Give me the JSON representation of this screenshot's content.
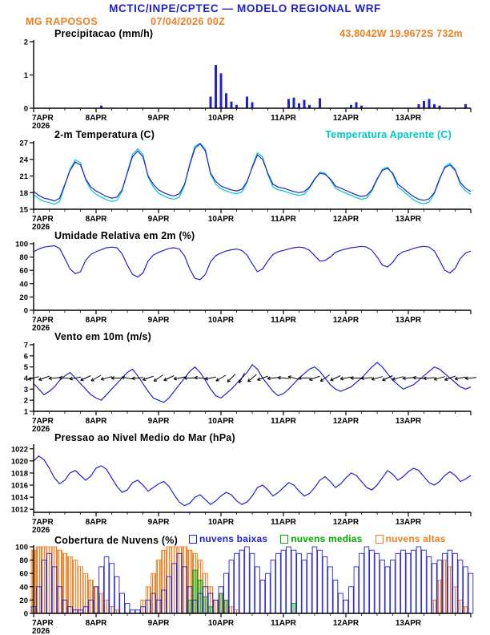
{
  "header": {
    "title": "MCTIC/INPE/CPTEC — MODELO REGIONAL WRF",
    "station": "MG RAPOSOS",
    "run": "07/04/2026 00Z",
    "location": "43.8042W 19.9672S 732m"
  },
  "colors": {
    "header_blue": "#2222cc",
    "line_blue": "#2222cc",
    "orange": "#ee7f22",
    "cyan": "#00c8c8",
    "green": "#00aa00",
    "black": "#000000"
  },
  "x_axis": {
    "labels": [
      "7APR",
      "8APR",
      "9APR",
      "10APR",
      "11APR",
      "12APR",
      "13APR"
    ],
    "year": "2026",
    "hours": 168,
    "step_hours": 2
  },
  "chart_data": [
    {
      "id": "precip",
      "type": "bar",
      "title": "Precipitacao (mm/h)",
      "ylim": [
        0,
        2
      ],
      "yticks": [
        0,
        1,
        2
      ],
      "series": [
        {
          "name": "precipitacao",
          "type": "bar",
          "color": "#2222cc",
          "values": [
            0,
            0,
            0,
            0,
            0,
            0,
            0,
            0,
            0,
            0,
            0,
            0,
            0,
            0.08,
            0,
            0,
            0,
            0,
            0,
            0,
            0,
            0,
            0,
            0,
            0,
            0,
            0,
            0,
            0,
            0,
            0,
            0,
            0,
            0,
            0.35,
            1.3,
            1.05,
            0.45,
            0.2,
            0.1,
            0,
            0.35,
            0.18,
            0,
            0,
            0,
            0,
            0,
            0,
            0.28,
            0.32,
            0.15,
            0.25,
            0.1,
            0,
            0.3,
            0,
            0,
            0,
            0,
            0,
            0.1,
            0.18,
            0.08,
            0,
            0,
            0,
            0,
            0,
            0,
            0,
            0,
            0,
            0,
            0.12,
            0.22,
            0.28,
            0.12,
            0.08,
            0,
            0,
            0,
            0,
            0.12,
            0
          ]
        }
      ]
    },
    {
      "id": "temp",
      "type": "line",
      "title": "2-m Temperatura (C)",
      "legend": "Temperatura Aparente (C)",
      "ylim": [
        15,
        27
      ],
      "yticks": [
        15,
        18,
        21,
        24,
        27
      ],
      "series": [
        {
          "name": "temperatura-aparente",
          "type": "line",
          "color": "#00c8c8",
          "values": [
            17.6,
            16.9,
            16.4,
            16.2,
            15.9,
            16.4,
            19.3,
            22.2,
            23.9,
            23.4,
            20.3,
            18.5,
            17.7,
            17.2,
            16.7,
            16.4,
            16.6,
            18.3,
            21.7,
            24.9,
            25.9,
            24.9,
            20.8,
            19.0,
            17.9,
            17.4,
            17.0,
            16.8,
            17.2,
            19.3,
            23.2,
            26.4,
            26.9,
            25.9,
            21.3,
            19.5,
            18.7,
            18.3,
            18.0,
            17.8,
            18.1,
            19.8,
            22.7,
            25.2,
            24.4,
            21.3,
            19.0,
            18.5,
            18.3,
            18.0,
            17.7,
            17.5,
            17.7,
            18.8,
            20.3,
            21.7,
            21.5,
            20.3,
            18.8,
            18.3,
            17.9,
            17.5,
            17.1,
            16.8,
            17.0,
            18.3,
            20.3,
            22.2,
            22.6,
            21.3,
            19.0,
            18.3,
            17.5,
            16.7,
            16.2,
            16.0,
            16.3,
            17.8,
            20.3,
            22.7,
            23.3,
            22.2,
            19.4,
            18.3,
            17.7
          ]
        },
        {
          "name": "temperatura-2m",
          "type": "line",
          "color": "#2222cc",
          "values": [
            18.2,
            17.5,
            17.0,
            16.8,
            16.5,
            17.0,
            19.5,
            22.0,
            23.5,
            23.0,
            20.5,
            19.0,
            18.3,
            17.8,
            17.3,
            17.0,
            17.2,
            18.5,
            21.5,
            24.5,
            25.5,
            24.5,
            21.0,
            19.5,
            18.5,
            18.0,
            17.6,
            17.4,
            17.8,
            19.5,
            23.0,
            26.0,
            26.8,
            25.5,
            21.5,
            20.0,
            19.2,
            18.8,
            18.5,
            18.3,
            18.6,
            20.0,
            22.5,
            24.8,
            24.0,
            21.5,
            19.5,
            19.0,
            18.8,
            18.5,
            18.2,
            18.0,
            18.2,
            19.0,
            20.5,
            21.5,
            21.3,
            20.5,
            19.2,
            18.8,
            18.4,
            18.0,
            17.6,
            17.3,
            17.5,
            18.5,
            20.5,
            22.0,
            22.4,
            21.5,
            19.5,
            18.8,
            18.0,
            17.3,
            16.8,
            16.6,
            16.9,
            18.0,
            20.5,
            22.5,
            23.0,
            22.0,
            19.8,
            18.8,
            18.2
          ]
        }
      ]
    },
    {
      "id": "rh",
      "type": "line",
      "title": "Umidade Relativa em 2m (%)",
      "ylim": [
        0,
        100
      ],
      "yticks": [
        0,
        20,
        40,
        60,
        80,
        100
      ],
      "series": [
        {
          "name": "umidade-relativa",
          "type": "line",
          "color": "#2222cc",
          "values": [
            88,
            92,
            95,
            96,
            97,
            93,
            78,
            62,
            55,
            58,
            75,
            84,
            88,
            91,
            94,
            95,
            94,
            85,
            68,
            54,
            50,
            56,
            74,
            83,
            87,
            90,
            93,
            94,
            92,
            82,
            62,
            48,
            46,
            54,
            73,
            82,
            86,
            89,
            91,
            92,
            90,
            83,
            70,
            58,
            62,
            74,
            84,
            88,
            90,
            92,
            94,
            95,
            94,
            90,
            82,
            74,
            75,
            80,
            87,
            90,
            92,
            94,
            95,
            96,
            95,
            90,
            80,
            68,
            65,
            72,
            83,
            88,
            90,
            93,
            95,
            96,
            95,
            89,
            75,
            60,
            56,
            63,
            78,
            86,
            89
          ]
        }
      ]
    },
    {
      "id": "wind",
      "type": "line",
      "title": "Vento em 10m (m/s)",
      "ylim": [
        1,
        7
      ],
      "yticks": [
        1,
        2,
        3,
        4,
        5,
        6,
        7
      ],
      "series": [
        {
          "name": "vento-10m",
          "type": "line",
          "color": "#2222cc",
          "values": [
            3.5,
            3.0,
            2.5,
            2.8,
            3.2,
            3.8,
            4.2,
            4.5,
            4.0,
            3.5,
            3.0,
            2.5,
            2.2,
            2.0,
            2.5,
            3.0,
            3.5,
            4.0,
            4.5,
            4.8,
            4.2,
            3.5,
            2.8,
            2.2,
            2.0,
            1.8,
            2.2,
            2.8,
            3.4,
            4.0,
            4.6,
            5.0,
            4.5,
            3.8,
            3.0,
            2.4,
            2.2,
            2.6,
            3.0,
            3.5,
            4.0,
            4.5,
            5.2,
            4.8,
            4.0,
            3.4,
            2.8,
            2.4,
            2.6,
            3.0,
            3.5,
            4.0,
            4.4,
            4.8,
            5.0,
            4.6,
            4.0,
            3.4,
            3.0,
            2.8,
            3.0,
            3.2,
            3.6,
            4.0,
            4.5,
            5.0,
            5.4,
            5.0,
            4.4,
            3.8,
            3.4,
            3.0,
            3.2,
            3.4,
            3.8,
            4.2,
            4.6,
            5.0,
            4.8,
            4.4,
            4.0,
            3.6,
            3.2,
            3.0,
            3.2
          ]
        },
        {
          "name": "wind-barbs",
          "type": "barbs",
          "color": "#000000",
          "level": 4,
          "step_hours": 4,
          "directions": [
            195,
            200,
            185,
            175,
            190,
            205,
            210,
            195,
            180,
            170,
            185,
            200,
            215,
            205,
            190,
            180,
            175,
            190,
            210,
            225,
            240,
            220,
            200,
            185,
            175,
            165,
            180,
            200,
            215,
            205,
            190,
            180,
            185,
            195,
            205,
            195,
            185,
            175,
            185,
            195,
            200,
            190,
            185
          ]
        }
      ]
    },
    {
      "id": "pressure",
      "type": "line",
      "title": "Pressao ao Nivel Medio do Mar (hPa)",
      "ylim": [
        1011.5,
        1022.5
      ],
      "yticks": [
        1012,
        1014,
        1016,
        1018,
        1020,
        1022
      ],
      "series": [
        {
          "name": "pressao-nivel-mar",
          "type": "line",
          "color": "#2222cc",
          "values": [
            1020.0,
            1020.8,
            1020.2,
            1018.8,
            1017.2,
            1016.2,
            1016.8,
            1018.0,
            1018.4,
            1017.6,
            1016.8,
            1017.5,
            1018.8,
            1019.2,
            1018.6,
            1017.2,
            1015.8,
            1014.8,
            1015.2,
            1016.4,
            1016.8,
            1016.0,
            1015.0,
            1015.6,
            1016.2,
            1016.6,
            1015.8,
            1014.4,
            1013.2,
            1012.6,
            1013.0,
            1014.0,
            1014.4,
            1013.6,
            1012.8,
            1013.4,
            1014.2,
            1014.8,
            1014.4,
            1013.4,
            1012.8,
            1013.2,
            1014.2,
            1015.6,
            1016.0,
            1015.2,
            1014.2,
            1014.8,
            1015.6,
            1016.4,
            1016.0,
            1015.0,
            1014.2,
            1014.6,
            1015.6,
            1016.8,
            1017.4,
            1016.6,
            1015.6,
            1016.2,
            1017.2,
            1018.0,
            1017.6,
            1016.6,
            1015.6,
            1015.2,
            1016.0,
            1017.2,
            1018.4,
            1017.8,
            1016.8,
            1017.4,
            1018.2,
            1018.8,
            1018.4,
            1017.4,
            1016.4,
            1016.0,
            1016.6,
            1017.6,
            1018.2,
            1017.6,
            1016.6,
            1017.0,
            1017.6
          ]
        }
      ]
    },
    {
      "id": "clouds",
      "type": "bar",
      "title": "Cobertura de Nuvens (%)",
      "ylim": [
        0,
        100
      ],
      "yticks": [
        0,
        20,
        40,
        60,
        80,
        100
      ],
      "legend_items": [
        {
          "label": "nuvens baixas",
          "color": "#2222cc"
        },
        {
          "label": "nuvens medias",
          "color": "#00aa00"
        },
        {
          "label": "nuvens altas",
          "color": "#ee7f22"
        }
      ],
      "series": [
        {
          "name": "nuvens-altas",
          "type": "cloudbar",
          "color": "#ee7f22",
          "hatch": true,
          "values": [
            95,
            100,
            100,
            100,
            100,
            95,
            90,
            85,
            80,
            70,
            60,
            50,
            40,
            30,
            20,
            10,
            5,
            0,
            0,
            0,
            0,
            20,
            40,
            60,
            80,
            95,
            100,
            100,
            100,
            100,
            95,
            90,
            80,
            60,
            40,
            20,
            30,
            20,
            10,
            5,
            0,
            0,
            0,
            0,
            0,
            0,
            0,
            0,
            0,
            0,
            0,
            0,
            0,
            0,
            0,
            0,
            0,
            0,
            0,
            0,
            0,
            0,
            0,
            0,
            0,
            0,
            0,
            0,
            0,
            0,
            0,
            0,
            0,
            0,
            0,
            0,
            0,
            20,
            50,
            80,
            70,
            40,
            20,
            10,
            0
          ]
        },
        {
          "name": "nuvens-medias",
          "type": "cloudbar",
          "color": "#00aa00",
          "fill": "#00aa00",
          "fill_opacity": 0.4,
          "values": [
            0,
            0,
            0,
            0,
            0,
            0,
            0,
            0,
            0,
            0,
            0,
            0,
            0,
            0,
            0,
            0,
            0,
            0,
            0,
            0,
            0,
            0,
            0,
            0,
            0,
            0,
            0,
            0,
            0,
            0,
            20,
            65,
            50,
            25,
            10,
            0,
            30,
            20,
            0,
            0,
            0,
            0,
            0,
            0,
            0,
            0,
            0,
            0,
            0,
            0,
            15,
            0,
            0,
            0,
            0,
            0,
            0,
            0,
            0,
            0,
            0,
            0,
            0,
            0,
            0,
            0,
            0,
            0,
            0,
            0,
            0,
            0,
            0,
            0,
            0,
            0,
            0,
            0,
            0,
            0,
            0,
            0,
            0,
            0,
            0
          ]
        },
        {
          "name": "nuvens-baixas",
          "type": "cloudbar",
          "color": "#2222cc",
          "fill": "none",
          "values": [
            10,
            40,
            80,
            90,
            70,
            40,
            20,
            10,
            5,
            5,
            10,
            20,
            40,
            70,
            85,
            75,
            55,
            30,
            15,
            5,
            5,
            10,
            20,
            30,
            20,
            35,
            55,
            75,
            90,
            70,
            40,
            20,
            30,
            40,
            30,
            20,
            40,
            60,
            80,
            90,
            95,
            100,
            90,
            70,
            50,
            60,
            80,
            90,
            95,
            100,
            95,
            90,
            80,
            90,
            100,
            95,
            85,
            70,
            50,
            30,
            20,
            40,
            70,
            90,
            100,
            95,
            90,
            80,
            70,
            80,
            90,
            95,
            90,
            95,
            100,
            95,
            85,
            75,
            80,
            90,
            95,
            90,
            80,
            70,
            60
          ]
        }
      ]
    }
  ]
}
